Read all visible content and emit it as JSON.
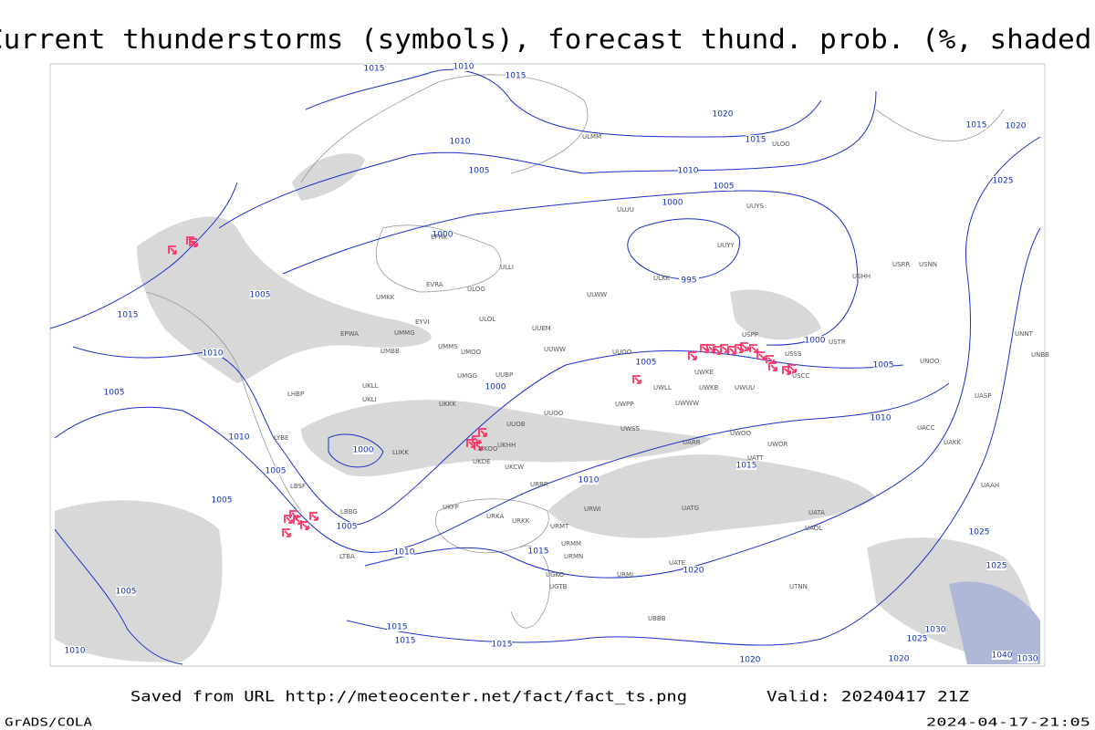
{
  "header": {
    "title": "Current thunderstorms (symbols), forecast thund. prob. (%, shaded)"
  },
  "isobar_labels": [
    "1015",
    "1010",
    "1015",
    "1020",
    "1015",
    "1010",
    "1005",
    "1000",
    "995",
    "1000",
    "1005",
    "1010",
    "1015",
    "1020",
    "1025",
    "1010",
    "1005",
    "1000",
    "1005",
    "1015",
    "1010",
    "1005",
    "1010",
    "1005",
    "1005",
    "1005",
    "1000",
    "1005",
    "1000",
    "1010",
    "1015",
    "1010",
    "1015",
    "1020",
    "1005",
    "1010",
    "1015",
    "1015",
    "1015",
    "1020",
    "1020",
    "1025",
    "1030",
    "1025",
    "1025",
    "1040",
    "1030"
  ],
  "stations": [
    "ULMM",
    "ULOO",
    "EFHK",
    "ULLI",
    "EVRA",
    "ULOO",
    "ULOL",
    "UMKK",
    "EYVI",
    "UMMG",
    "EPWA",
    "UMBB",
    "UMMS",
    "UMOO",
    "UUEM",
    "ULWW",
    "UUWW",
    "UUOO",
    "UMGG",
    "UUBP",
    "UKLL",
    "UKLI",
    "LHBP",
    "UKKK",
    "UUOB",
    "UUOO",
    "UWPP",
    "UWKE",
    "UWKB",
    "UWUU",
    "UWWW",
    "USSS",
    "USCC",
    "USPP",
    "UWLL",
    "UWSS",
    "UWOO",
    "UWOR",
    "UATT",
    "UARR",
    "UKHH",
    "UKOO",
    "UKDE",
    "LUKK",
    "LYBE",
    "LBSF",
    "LBBG",
    "LTBA",
    "UKCW",
    "URRR",
    "UKFF",
    "URKA",
    "URKK",
    "URWI",
    "UATG",
    "URMT",
    "URMM",
    "URMN",
    "UGKO",
    "UGTB",
    "UBBB",
    "UATE",
    "URMI",
    "UTNN",
    "UAOL",
    "UATA",
    "UACC",
    "UAKK",
    "UASP",
    "UAAH",
    "UNNT",
    "UNBB",
    "UNOO",
    "UUYY",
    "ULKK",
    "USRR",
    "USNN",
    "USHH",
    "USTR",
    "UUYS",
    "ULUU"
  ],
  "footer": {
    "saved": "Saved from URL http://meteocenter.net/fact/fact_ts.png",
    "valid": "Valid: 20240417 21Z",
    "software": "GrADS/COLA",
    "timestamp": "2024-04-17-21:05"
  }
}
